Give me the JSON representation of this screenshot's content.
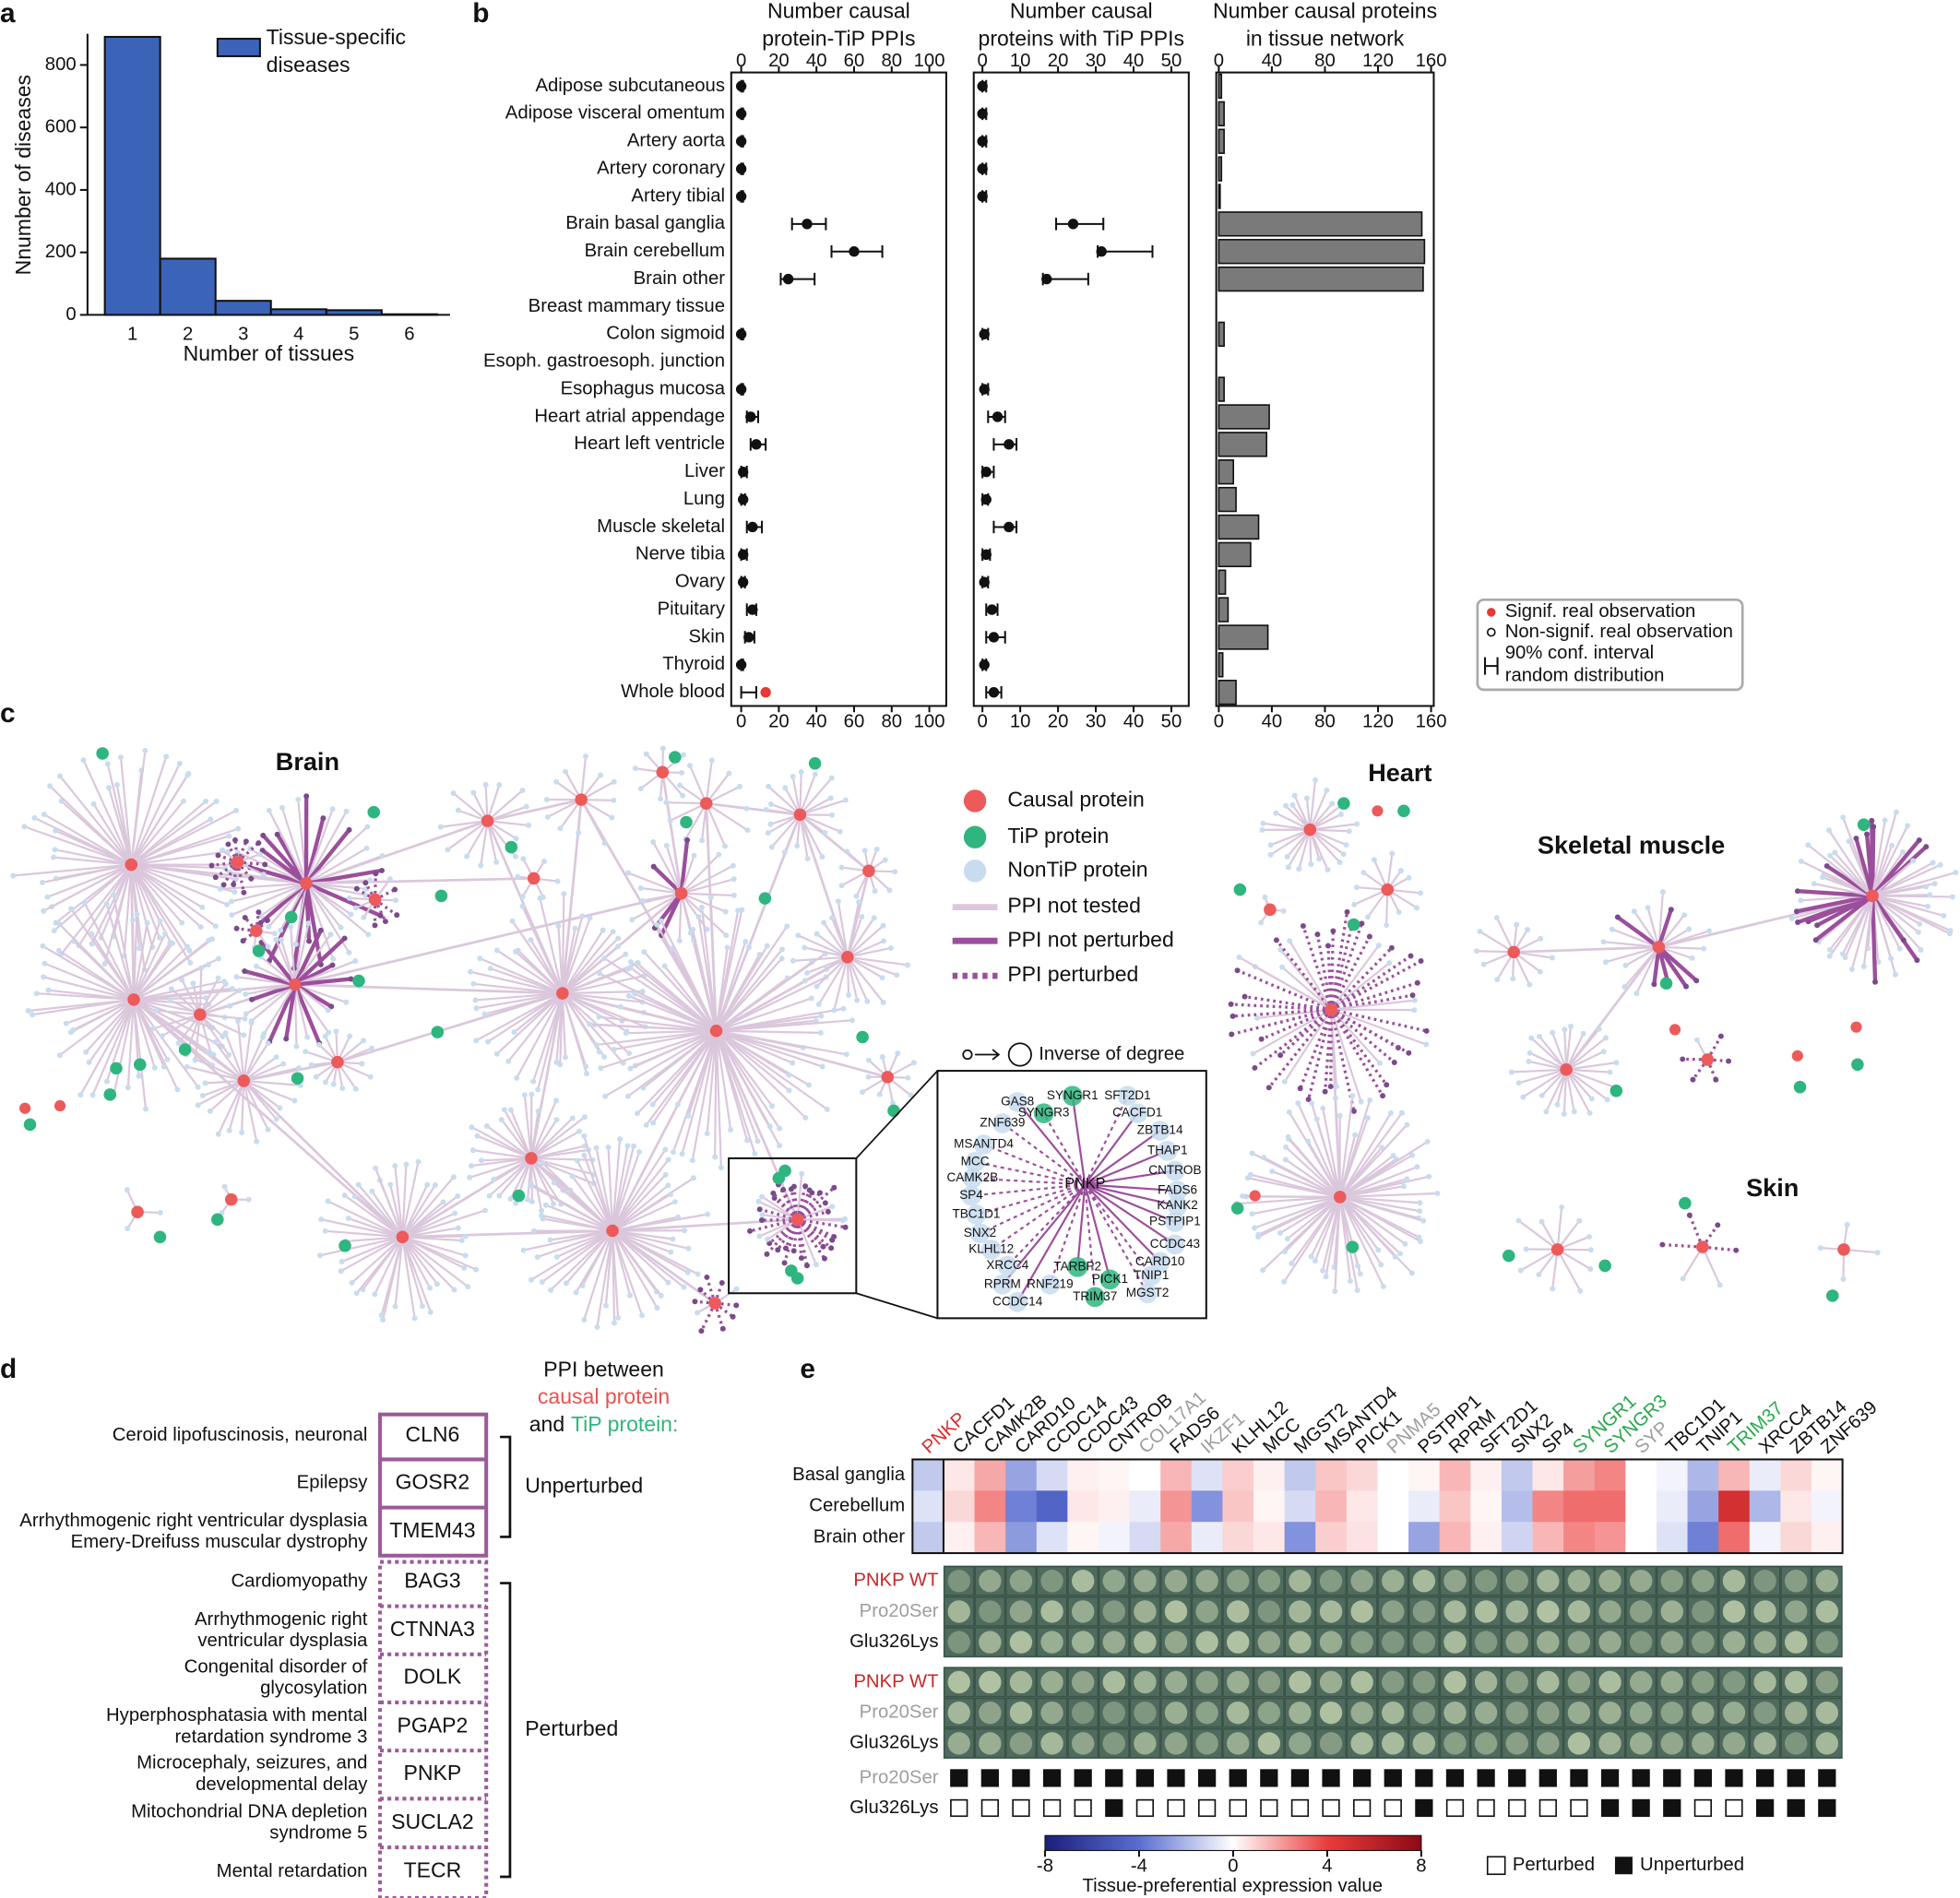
{
  "panel_labels": [
    "a",
    "b",
    "c",
    "d",
    "e"
  ],
  "chart_data": [
    {
      "type": "bar",
      "categories": [
        1,
        2,
        3,
        4,
        5,
        6
      ],
      "series": [
        {
          "name": "Tissue-specific diseases",
          "color": "#3b63b8",
          "values": [
            890,
            180,
            45,
            18,
            15,
            2
          ]
        }
      ],
      "xlabel": "Number of tissues",
      "ylabel": "Nnumber of diseases",
      "ylim": [
        0,
        900
      ],
      "yticks": [
        0,
        200,
        400,
        600,
        800
      ],
      "legend": "upper right"
    },
    {
      "type": "multi",
      "categories": [
        "Adipose subcutaneous",
        "Adipose visceral omentum",
        "Artery aorta",
        "Artery coronary",
        "Artery tibial",
        "Brain basal ganglia",
        "Brain cerebellum",
        "Brain other",
        "Breast mammary tissue",
        "Colon sigmoid",
        "Esoph. gastroesoph. junction",
        "Esophagus mucosa",
        "Heart atrial appendage",
        "Heart left ventricle",
        "Liver",
        "Lung",
        "Muscle skeletal",
        "Nerve tibia",
        "Ovary",
        "Pituitary",
        "Skin",
        "Thyroid",
        "Whole blood"
      ],
      "subplots": [
        {
          "type": "dot_errorbar",
          "title": [
            "Number causal",
            "protein-TiP PPIs"
          ],
          "xlim": [
            -5.3,
            109
          ],
          "xticks": [
            0,
            20,
            40,
            60,
            80,
            100
          ],
          "values": [
            0,
            0,
            0,
            0,
            0,
            35,
            60,
            25,
            null,
            0,
            null,
            0,
            5,
            8,
            1,
            1,
            6,
            1,
            1,
            6,
            4,
            0,
            13
          ],
          "ci_low": [
            0,
            0,
            0,
            0,
            0,
            27,
            48,
            21,
            null,
            0,
            null,
            0,
            3,
            5,
            0,
            0,
            3,
            0,
            0,
            3,
            2,
            0,
            0
          ],
          "ci_high": [
            1,
            1,
            1,
            1,
            1,
            45,
            75,
            39,
            null,
            1,
            null,
            1,
            9,
            13,
            3,
            2,
            11,
            3,
            2,
            8,
            7,
            1,
            8
          ],
          "significant": [
            false,
            false,
            false,
            false,
            false,
            false,
            false,
            false,
            false,
            false,
            false,
            false,
            false,
            false,
            false,
            false,
            false,
            false,
            false,
            false,
            false,
            false,
            true
          ],
          "color": "#111111",
          "signif_color": "#e53935"
        },
        {
          "type": "dot_errorbar",
          "title": [
            "Number causal",
            "proteins with TiP PPIs"
          ],
          "xlim": [
            -2.3,
            54.6
          ],
          "xticks": [
            0,
            10,
            20,
            30,
            40,
            50
          ],
          "values": [
            0,
            0,
            0,
            0,
            0,
            24,
            31.5,
            17,
            null,
            0.5,
            null,
            0.5,
            4,
            7,
            1,
            1,
            7,
            1,
            0.5,
            2.5,
            3,
            0.5,
            3
          ],
          "ci_low": [
            0,
            0,
            0,
            0,
            0,
            19.5,
            30.5,
            16,
            null,
            0,
            null,
            0,
            1.5,
            3,
            0,
            0,
            3,
            0,
            0,
            1,
            1,
            0,
            1
          ],
          "ci_high": [
            1,
            1,
            1,
            1,
            1,
            32,
            45,
            28,
            null,
            1.5,
            null,
            1.5,
            6,
            9,
            3,
            1.5,
            9,
            2,
            1.5,
            4,
            6,
            1,
            5
          ],
          "significant": [
            false,
            false,
            false,
            false,
            false,
            false,
            false,
            false,
            false,
            false,
            false,
            false,
            false,
            false,
            false,
            false,
            false,
            false,
            false,
            false,
            false,
            false,
            false
          ],
          "color": "#111111",
          "signif_color": "#e53935"
        },
        {
          "type": "barh",
          "title": [
            "Number causal proteins",
            "in tissue network"
          ],
          "xlim": [
            -1.9,
            162
          ],
          "xticks": [
            0,
            40,
            80,
            120,
            160
          ],
          "values": [
            2,
            4,
            4,
            2,
            1,
            153,
            155,
            154,
            0,
            4,
            0,
            4,
            38,
            36,
            11,
            13,
            30,
            24,
            5,
            7,
            37,
            3,
            13
          ],
          "color": "#7a7a7a"
        }
      ],
      "legend": {
        "entries": [
          [
            "Signif. real observation"
          ],
          [
            "Non-signif. real observation"
          ],
          [
            "90% conf. interval",
            "random distribution"
          ]
        ]
      }
    },
    {
      "type": "heatmap",
      "columns": [
        "PNKP",
        "CACFD1",
        "CAMK2B",
        "CARD10",
        "CCDC14",
        "CCDC43",
        "CNTROB",
        "COL17A1",
        "FADS6",
        "IKZF1",
        "KLHL12",
        "MCC",
        "MGST2",
        "MSANTD4",
        "PICK1",
        "PNMA5",
        "PSTPIP1",
        "RPRM",
        "SFT2D1",
        "SNX2",
        "SP4",
        "SYNGR1",
        "SYNGR3",
        "SYP",
        "TBC1D1",
        "TNIP1",
        "TRIM37",
        "XRCC4",
        "ZBTB14",
        "ZNF639"
      ],
      "column_colors": [
        "#d32f2f",
        "#111111",
        "#111111",
        "#111111",
        "#111111",
        "#111111",
        "#111111",
        "#9e9e9e",
        "#111111",
        "#9e9e9e",
        "#111111",
        "#111111",
        "#111111",
        "#111111",
        "#111111",
        "#9e9e9e",
        "#111111",
        "#111111",
        "#111111",
        "#111111",
        "#111111",
        "#2aa84a",
        "#2aa84a",
        "#9e9e9e",
        "#111111",
        "#111111",
        "#2aa84a",
        "#111111",
        "#111111",
        "#111111"
      ],
      "rows": [
        "Basal ganglia",
        "Cerebellum",
        "Brain other"
      ],
      "values": [
        [
          -1.5,
          0.5,
          1.8,
          -2.5,
          -1,
          0.3,
          0.2,
          0,
          1.5,
          -0.8,
          1,
          0.3,
          -1.5,
          1.2,
          0.8,
          0,
          0.2,
          1.5,
          0.3,
          -1.5,
          0.5,
          2,
          2.5,
          0,
          -0.3,
          -2,
          1.5,
          -0.5,
          0.8,
          0.2
        ],
        [
          -0.8,
          0.8,
          2.5,
          -3.5,
          -4.5,
          0.5,
          0.3,
          -0.5,
          2.2,
          -3,
          1.2,
          0.2,
          -1,
          1.5,
          0.5,
          0,
          -0.5,
          1.2,
          0.2,
          -1.8,
          2.5,
          3,
          3,
          0,
          -0.5,
          -2.5,
          5,
          -2,
          0.5,
          -0.3
        ],
        [
          -1.5,
          0.3,
          1.5,
          -2.8,
          -0.8,
          0.2,
          -0.3,
          -1,
          1.8,
          -0.5,
          0.8,
          0.5,
          -3,
          1,
          0.6,
          0,
          -2.5,
          1.5,
          0.3,
          -1.2,
          1.5,
          2.5,
          2.2,
          0,
          -0.8,
          -3.5,
          3,
          -0.3,
          0.8,
          0.3
        ]
      ],
      "colorbar": {
        "label": "Tissue-preferential expression value",
        "lim": [
          -8,
          8
        ],
        "ticks": [
          -8,
          -4,
          0,
          4,
          8
        ]
      },
      "screen_blocks": [
        [
          "PNKP WT",
          "Pro20Ser",
          "Glu326Lys"
        ],
        [
          "PNKP WT",
          "Pro20Ser",
          "Glu326Lys"
        ]
      ],
      "screen_colors": [
        "#c62828",
        "#9e9e9e",
        "#111111"
      ],
      "outcome_rows": [
        {
          "label": "Pro20Ser",
          "color": "#9e9e9e",
          "unperturbed": [
            null,
            true,
            true,
            true,
            true,
            true,
            true,
            true,
            true,
            true,
            true,
            true,
            true,
            true,
            true,
            true,
            true,
            true,
            true,
            true,
            true,
            true,
            true,
            true,
            true,
            true,
            true,
            true,
            true,
            true
          ]
        },
        {
          "label": "Glu326Lys",
          "color": "#111111",
          "unperturbed": [
            null,
            false,
            false,
            false,
            false,
            false,
            true,
            false,
            false,
            false,
            false,
            false,
            false,
            false,
            false,
            false,
            true,
            false,
            false,
            false,
            false,
            false,
            true,
            true,
            true,
            false,
            false,
            true,
            true,
            true
          ]
        }
      ],
      "outcome_legend": [
        "Perturbed",
        "Unperturbed"
      ]
    }
  ],
  "network": {
    "titles": {
      "brain": "Brain",
      "heart": "Heart",
      "muscle": "Skeletal muscle",
      "skin": "Skin"
    },
    "legend": [
      "Causal protein",
      "TiP protein",
      "NonTiP protein",
      "PPI not tested",
      "PPI not perturbed",
      "PPI perturbed"
    ],
    "degree_note": "Inverse of degree",
    "inset": {
      "center": "PNKP",
      "nodes": [
        {
          "label": "GAS8",
          "tip": false
        },
        {
          "label": "SYNGR3",
          "tip": true
        },
        {
          "label": "SYNGR1",
          "tip": true
        },
        {
          "label": "SFT2D1",
          "tip": false
        },
        {
          "label": "CACFD1",
          "tip": false
        },
        {
          "label": "ZNF639",
          "tip": false
        },
        {
          "label": "ZBTB14",
          "tip": false
        },
        {
          "label": "MSANTD4",
          "tip": false
        },
        {
          "label": "THAP1",
          "tip": false
        },
        {
          "label": "MCC",
          "tip": false
        },
        {
          "label": "CNTROB",
          "tip": false
        },
        {
          "label": "CAMK2B",
          "tip": false
        },
        {
          "label": "FADS6",
          "tip": false
        },
        {
          "label": "SP4",
          "tip": false
        },
        {
          "label": "KANK2",
          "tip": false
        },
        {
          "label": "TBC1D1",
          "tip": false
        },
        {
          "label": "PSTPIP1",
          "tip": false
        },
        {
          "label": "SNX2",
          "tip": false
        },
        {
          "label": "CCDC43",
          "tip": false
        },
        {
          "label": "KLHL12",
          "tip": false
        },
        {
          "label": "CARD10",
          "tip": false
        },
        {
          "label": "XRCC4",
          "tip": false
        },
        {
          "label": "TARBP2",
          "tip": true
        },
        {
          "label": "TNIP1",
          "tip": false
        },
        {
          "label": "RPRM",
          "tip": false
        },
        {
          "label": "RNF219",
          "tip": false
        },
        {
          "label": "PICK1",
          "tip": true
        },
        {
          "label": "MGST2",
          "tip": false
        },
        {
          "label": "CCDC14",
          "tip": false
        },
        {
          "label": "TRIM37",
          "tip": true
        }
      ]
    }
  },
  "table": {
    "header": [
      "PPI between",
      "causal protein",
      "and",
      "TiP protein:"
    ],
    "groups": [
      {
        "name": "Unperturbed",
        "rows": [
          {
            "disease": [
              "Ceroid lipofuscinosis, neuronal"
            ],
            "gene": "CLN6"
          },
          {
            "disease": [
              "Epilepsy"
            ],
            "gene": "GOSR2"
          },
          {
            "disease": [
              "Arrhythmogenic right ventricular dysplasia",
              "Emery-Dreifuss muscular dystrophy"
            ],
            "gene": "TMEM43"
          }
        ]
      },
      {
        "name": "Perturbed",
        "rows": [
          {
            "disease": [
              "Cardiomyopathy"
            ],
            "gene": "BAG3"
          },
          {
            "disease": [
              "Arrhythmogenic right",
              "ventricular dysplasia"
            ],
            "gene": "CTNNA3"
          },
          {
            "disease": [
              "Congenital disorder of",
              "glycosylation"
            ],
            "gene": "DOLK"
          },
          {
            "disease": [
              "Hyperphosphatasia with mental",
              "retardation syndrome 3"
            ],
            "gene": "PGAP2"
          },
          {
            "disease": [
              "Microcephaly, seizures, and",
              "developmental delay"
            ],
            "gene": "PNKP"
          },
          {
            "disease": [
              "Mitochondrial DNA depletion",
              "syndrome 5"
            ],
            "gene": "SUCLA2"
          },
          {
            "disease": [
              "Mental retardation"
            ],
            "gene": "TECR"
          }
        ]
      }
    ]
  }
}
